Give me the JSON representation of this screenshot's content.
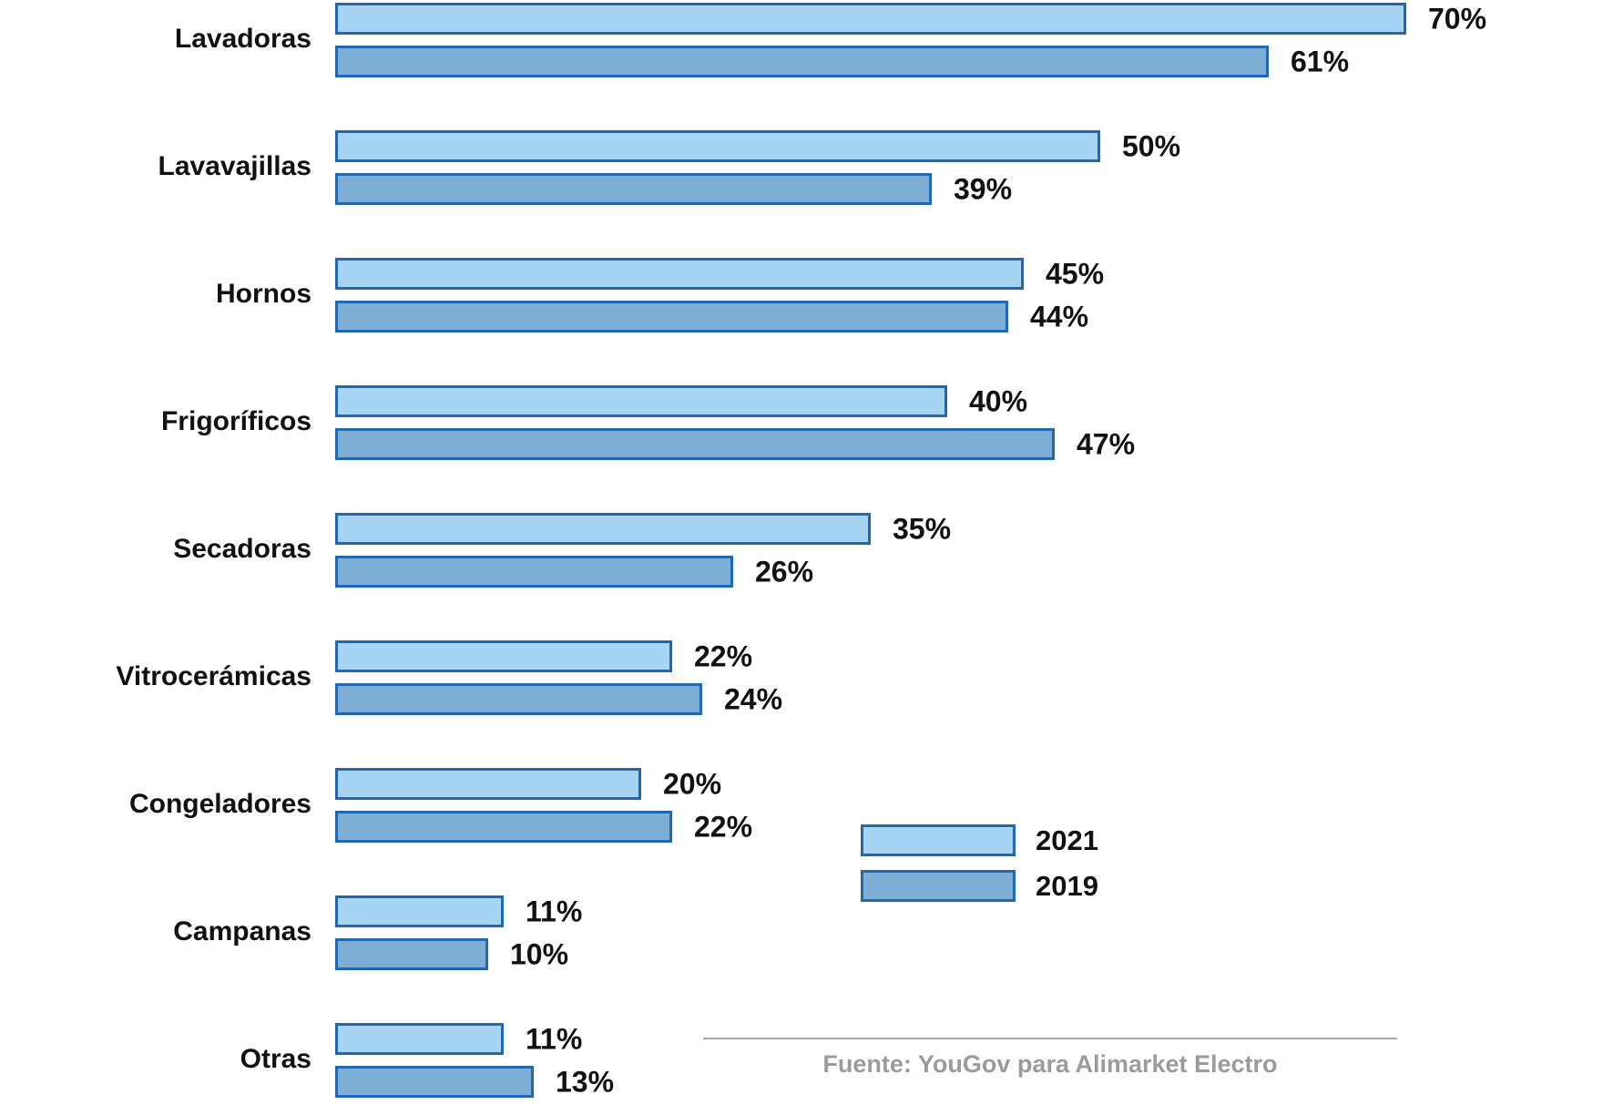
{
  "chart_data": {
    "type": "bar",
    "orientation": "horizontal",
    "categories": [
      "Lavadoras",
      "Lavavajillas",
      "Hornos",
      "Frigoríficos",
      "Secadoras",
      "Vitrocerámicas",
      "Congeladores",
      "Campanas",
      "Otras"
    ],
    "series": [
      {
        "name": "2021",
        "values": [
          70,
          50,
          45,
          40,
          35,
          22,
          20,
          11,
          11
        ]
      },
      {
        "name": "2019",
        "values": [
          61,
          39,
          44,
          47,
          26,
          24,
          22,
          10,
          13
        ]
      }
    ],
    "value_suffix": "%",
    "xlim": [
      0,
      72
    ],
    "grid": false,
    "legend_position": "bottom-right",
    "title": "",
    "xlabel": "",
    "ylabel": "",
    "source": "Fuente: YouGov para Alimarket Electro"
  },
  "legend": {
    "items": [
      {
        "label": "2021",
        "color": "#A6D4F2"
      },
      {
        "label": "2019",
        "color": "#7DAFD6"
      }
    ]
  },
  "footer": {
    "source": "Fuente: YouGov para Alimarket Electro"
  },
  "colors": {
    "series_2021_fill": "#A6D4F2",
    "series_2019_fill": "#7DAFD6",
    "bar_border": "#2268AE",
    "label_text": "#111111",
    "source_text": "#9B9B9B",
    "divider": "#AAAAAA"
  }
}
